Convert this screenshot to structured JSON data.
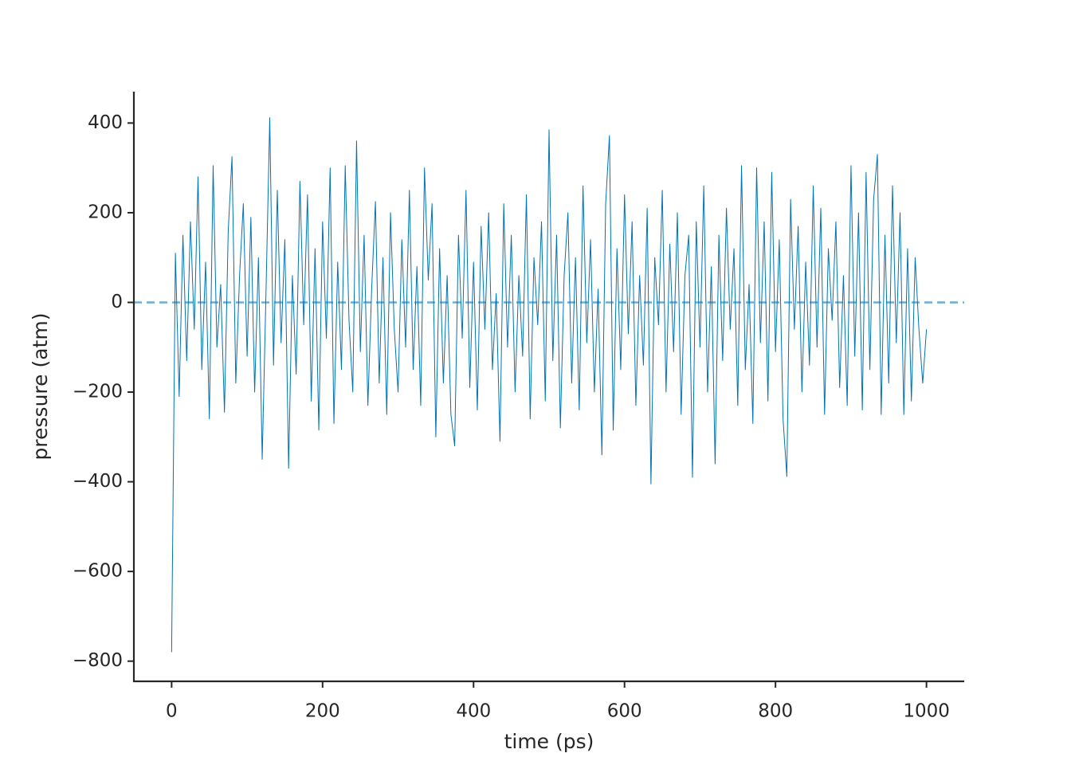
{
  "chart_data": {
    "type": "line",
    "xlabel": "time (ps)",
    "ylabel": "pressure (atm)",
    "color": "#0173b2",
    "reference_line": {
      "value": 0,
      "color": "#6aaed6",
      "style": "dashed"
    },
    "xlim": [
      -50,
      1050
    ],
    "ylim": [
      -845,
      470
    ],
    "xticks": [
      0,
      200,
      400,
      600,
      800,
      1000
    ],
    "yticks": [
      {
        "value": -800,
        "label": "−800"
      },
      {
        "value": -600,
        "label": "−600"
      },
      {
        "value": -400,
        "label": "−400"
      },
      {
        "value": -200,
        "label": "−200"
      },
      0,
      200,
      400
    ],
    "x": [
      0,
      5,
      10,
      15,
      20,
      25,
      30,
      35,
      40,
      45,
      50,
      55,
      60,
      65,
      70,
      75,
      80,
      85,
      90,
      95,
      100,
      105,
      110,
      115,
      120,
      125,
      130,
      135,
      140,
      145,
      150,
      155,
      160,
      165,
      170,
      175,
      180,
      185,
      190,
      195,
      200,
      205,
      210,
      215,
      220,
      225,
      230,
      235,
      240,
      245,
      250,
      255,
      260,
      265,
      270,
      275,
      280,
      285,
      290,
      295,
      300,
      305,
      310,
      315,
      320,
      325,
      330,
      335,
      340,
      345,
      350,
      355,
      360,
      365,
      370,
      375,
      380,
      385,
      390,
      395,
      400,
      405,
      410,
      415,
      420,
      425,
      430,
      435,
      440,
      445,
      450,
      455,
      460,
      465,
      470,
      475,
      480,
      485,
      490,
      495,
      500,
      505,
      510,
      515,
      520,
      525,
      530,
      535,
      540,
      545,
      550,
      555,
      560,
      565,
      570,
      575,
      580,
      585,
      590,
      595,
      600,
      605,
      610,
      615,
      620,
      625,
      630,
      635,
      640,
      645,
      650,
      655,
      660,
      665,
      670,
      675,
      680,
      685,
      690,
      695,
      700,
      705,
      710,
      715,
      720,
      725,
      730,
      735,
      740,
      745,
      750,
      755,
      760,
      765,
      770,
      775,
      780,
      785,
      790,
      795,
      800,
      805,
      810,
      815,
      820,
      825,
      830,
      835,
      840,
      845,
      850,
      855,
      860,
      865,
      870,
      875,
      880,
      885,
      890,
      895,
      900,
      905,
      910,
      915,
      920,
      925,
      930,
      935,
      940,
      945,
      950,
      955,
      960,
      965,
      970,
      975,
      980,
      985,
      990,
      995,
      1000
    ],
    "values": [
      -780,
      110,
      -210,
      150,
      -130,
      180,
      -60,
      280,
      -150,
      90,
      -260,
      305,
      -100,
      40,
      -245,
      160,
      325,
      -180,
      60,
      220,
      -120,
      190,
      -200,
      100,
      -350,
      20,
      412,
      -140,
      250,
      -90,
      140,
      -370,
      60,
      -160,
      270,
      -50,
      240,
      -220,
      120,
      -285,
      180,
      -80,
      300,
      -270,
      90,
      -150,
      305,
      -40,
      -200,
      360,
      -110,
      150,
      -230,
      30,
      225,
      -180,
      100,
      -250,
      200,
      -60,
      -200,
      140,
      -100,
      250,
      -150,
      80,
      -230,
      300,
      50,
      220,
      -300,
      120,
      -180,
      60,
      -250,
      -320,
      150,
      -80,
      250,
      -190,
      90,
      -240,
      170,
      -60,
      200,
      -150,
      20,
      -310,
      220,
      -100,
      150,
      -200,
      60,
      -120,
      240,
      -260,
      100,
      -50,
      180,
      -220,
      385,
      -130,
      150,
      -280,
      60,
      200,
      -180,
      100,
      -240,
      260,
      -90,
      140,
      -200,
      30,
      -340,
      220,
      372,
      -285,
      120,
      -150,
      240,
      -70,
      180,
      -230,
      60,
      -140,
      210,
      -405,
      100,
      -50,
      250,
      -200,
      130,
      -110,
      200,
      -250,
      60,
      150,
      -390,
      180,
      -100,
      260,
      -200,
      80,
      -360,
      150,
      -130,
      210,
      -60,
      120,
      -230,
      305,
      -150,
      40,
      -270,
      300,
      -90,
      180,
      -220,
      290,
      -110,
      140,
      -260,
      -388,
      230,
      -60,
      170,
      -200,
      90,
      -140,
      260,
      -100,
      210,
      -250,
      120,
      -40,
      180,
      -190,
      60,
      -230,
      305,
      -120,
      200,
      -240,
      290,
      -150,
      230,
      330,
      -250,
      150,
      -180,
      260,
      -90,
      200,
      -250,
      120,
      -220,
      100,
      -60,
      -180,
      -60
    ]
  }
}
